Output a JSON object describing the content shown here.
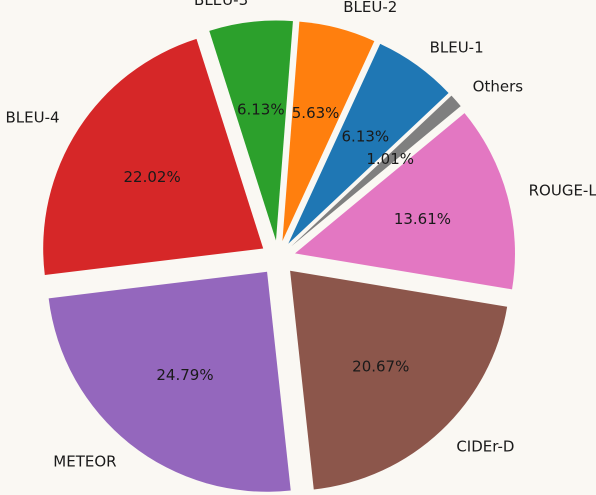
{
  "chart_data": {
    "type": "pie",
    "title": "",
    "start_angle_deg": 39.6,
    "direction": "counterclockwise",
    "slices": [
      {
        "label": "Others",
        "value": 1.01,
        "pct_text": "1.01%",
        "color": "#7f7f7f"
      },
      {
        "label": "BLEU-1",
        "value": 6.13,
        "pct_text": "6.13%",
        "color": "#1f77b4"
      },
      {
        "label": "BLEU-2",
        "value": 5.63,
        "pct_text": "5.63%",
        "color": "#ff7f0e"
      },
      {
        "label": "BLEU-3",
        "value": 6.13,
        "pct_text": "6.13%",
        "color": "#2ca02c"
      },
      {
        "label": "BLEU-4",
        "value": 22.02,
        "pct_text": "22.02%",
        "color": "#d62728"
      },
      {
        "label": "METEOR",
        "value": 24.79,
        "pct_text": "24.79%",
        "color": "#9467bd"
      },
      {
        "label": "CIDEr-D",
        "value": 20.67,
        "pct_text": "20.67%",
        "color": "#8c564b"
      },
      {
        "label": "ROUGE-L",
        "value": 13.61,
        "pct_text": "13.61%",
        "color": "#e377c2"
      }
    ]
  }
}
